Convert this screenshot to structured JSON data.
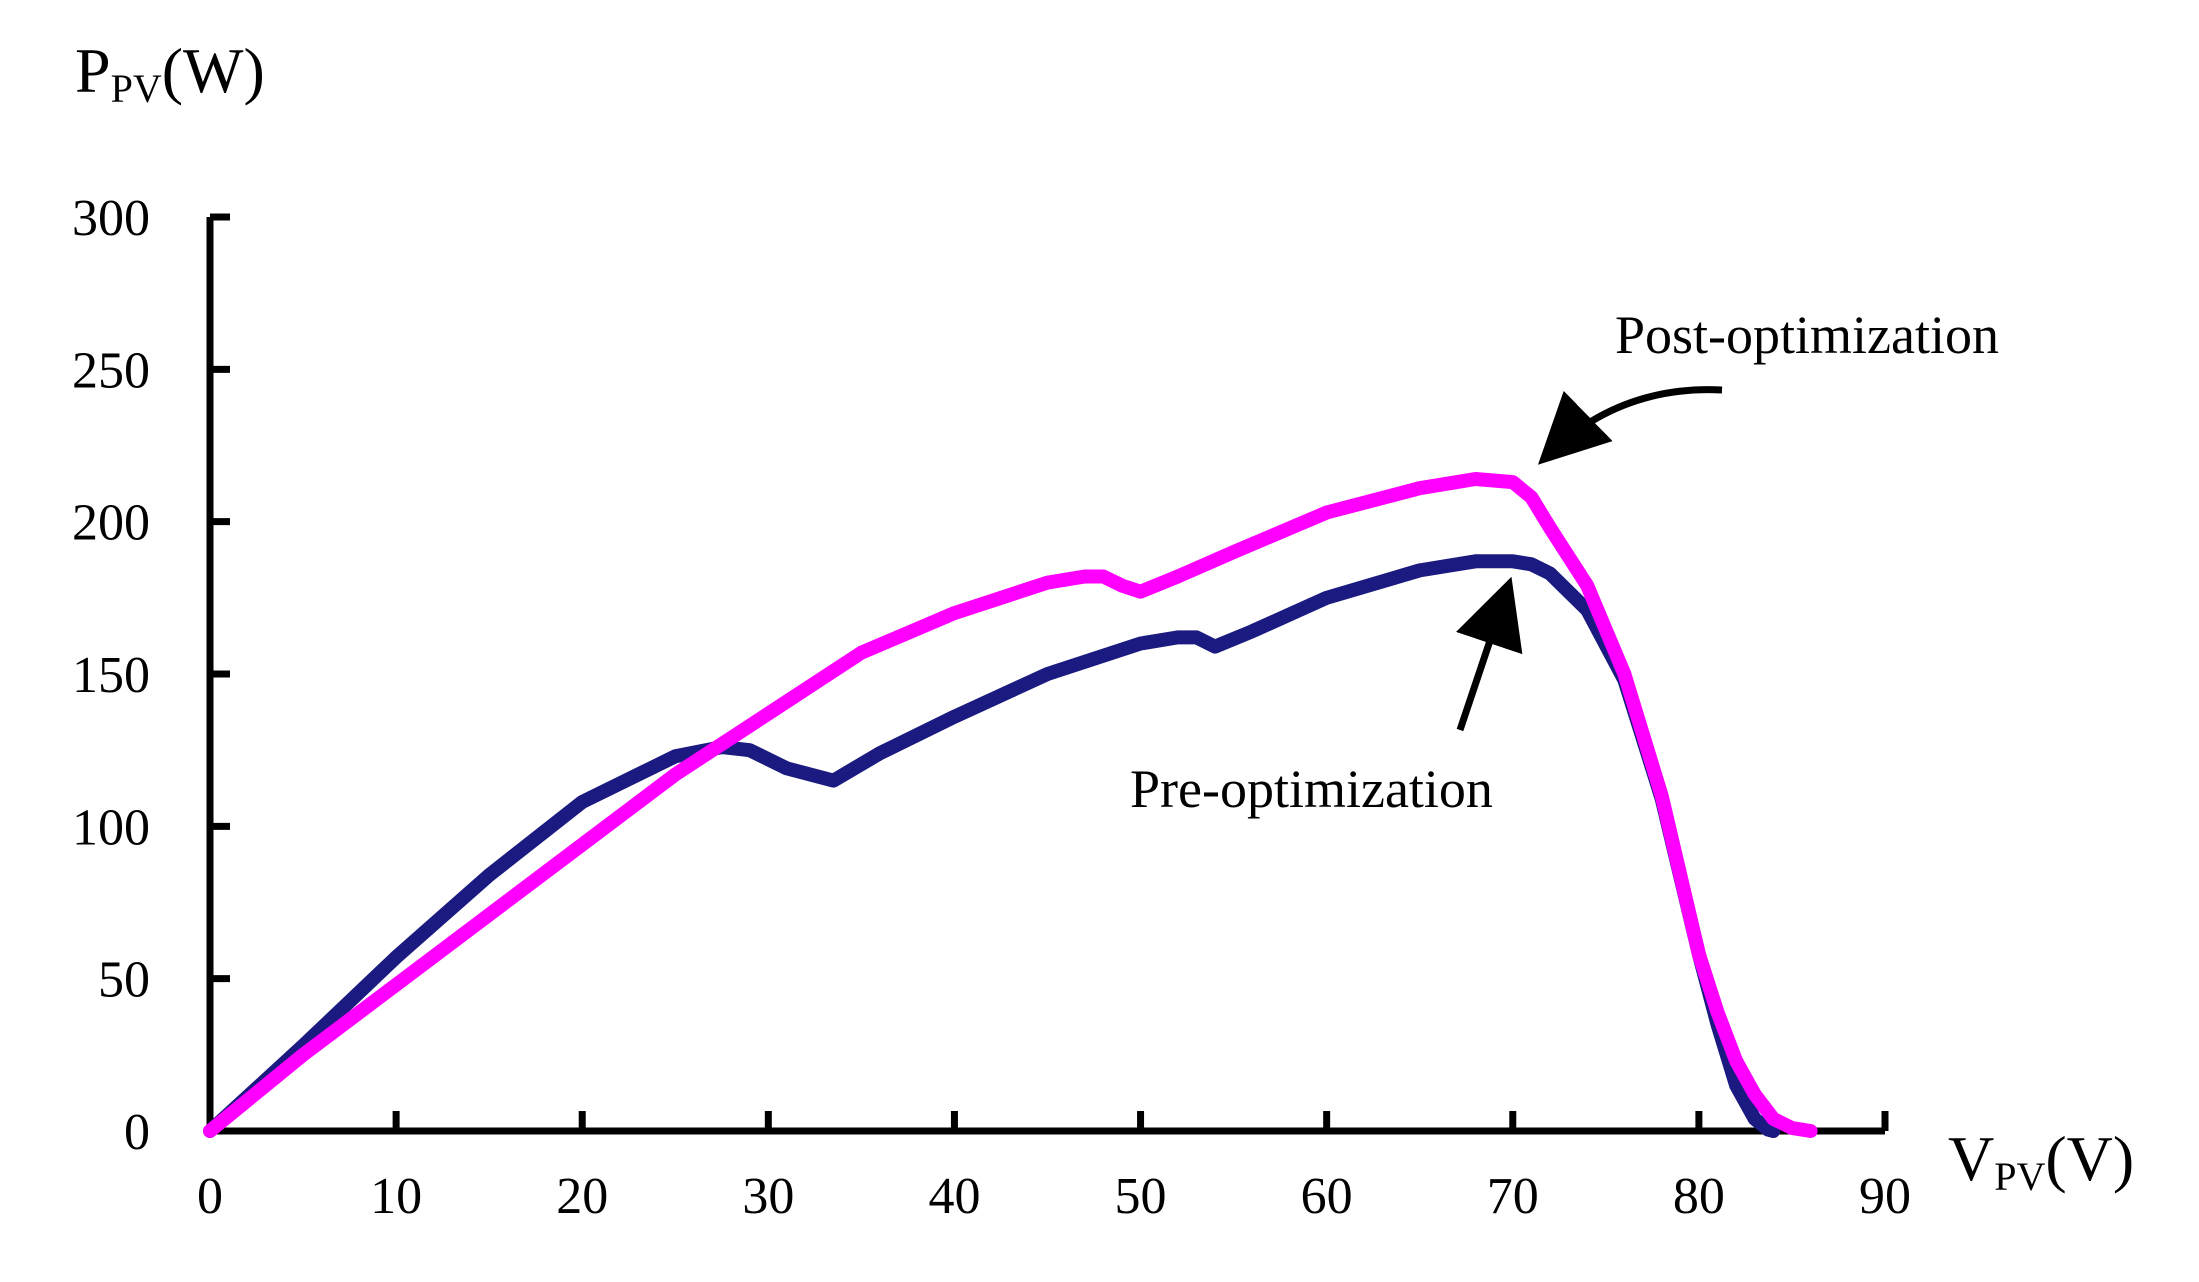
{
  "chart_data": {
    "type": "line",
    "title": "",
    "ylabel": {
      "main": "P",
      "sub": "PV",
      "unit": "(W)"
    },
    "xlabel": {
      "main": "V",
      "sub": "PV",
      "unit": "(V)"
    },
    "xlim": [
      0,
      90
    ],
    "ylim": [
      0,
      300
    ],
    "xticks": [
      0,
      10,
      20,
      30,
      40,
      50,
      60,
      70,
      80,
      90
    ],
    "yticks": [
      0,
      50,
      100,
      150,
      200,
      250,
      300
    ],
    "grid": false,
    "series": [
      {
        "name": "Pre-optimization",
        "color": "#1a1a80",
        "x": [
          0,
          5,
          10,
          15,
          20,
          25,
          27.5,
          29,
          30,
          31,
          33.5,
          36,
          40,
          45,
          50,
          52,
          53,
          54,
          56,
          60,
          65,
          68,
          70,
          71,
          72,
          74,
          76,
          78,
          80,
          81,
          82,
          83,
          83.7,
          84
        ],
        "y": [
          0,
          28,
          57,
          84,
          108,
          123,
          126,
          125,
          122,
          119,
          115,
          124,
          136,
          150,
          160,
          162,
          162,
          159,
          164,
          175,
          184,
          187,
          187,
          186,
          183,
          171,
          148,
          109,
          58,
          35,
          15,
          4,
          0.5,
          0
        ]
      },
      {
        "name": "Post-optimization",
        "color": "#ff00ff",
        "x": [
          0,
          5,
          10,
          15,
          20,
          25,
          30,
          35,
          40,
          45,
          47,
          48,
          49,
          50,
          52,
          55,
          60,
          65,
          68,
          70,
          71,
          72,
          74,
          76,
          78,
          80,
          81,
          82,
          83,
          84,
          85,
          86
        ],
        "y": [
          0,
          25,
          48,
          71,
          94,
          117,
          137,
          157,
          170,
          180,
          182,
          182,
          179,
          177,
          182,
          190,
          203,
          211,
          214,
          213,
          208,
          198,
          179,
          150,
          110,
          58,
          39,
          23,
          12,
          4,
          1,
          0
        ]
      }
    ],
    "annotations": [
      {
        "text": "Post-optimization",
        "points_to": [
          70.5,
          213
        ]
      },
      {
        "text": "Pre-optimization",
        "points_to": [
          70,
          186
        ]
      }
    ]
  }
}
